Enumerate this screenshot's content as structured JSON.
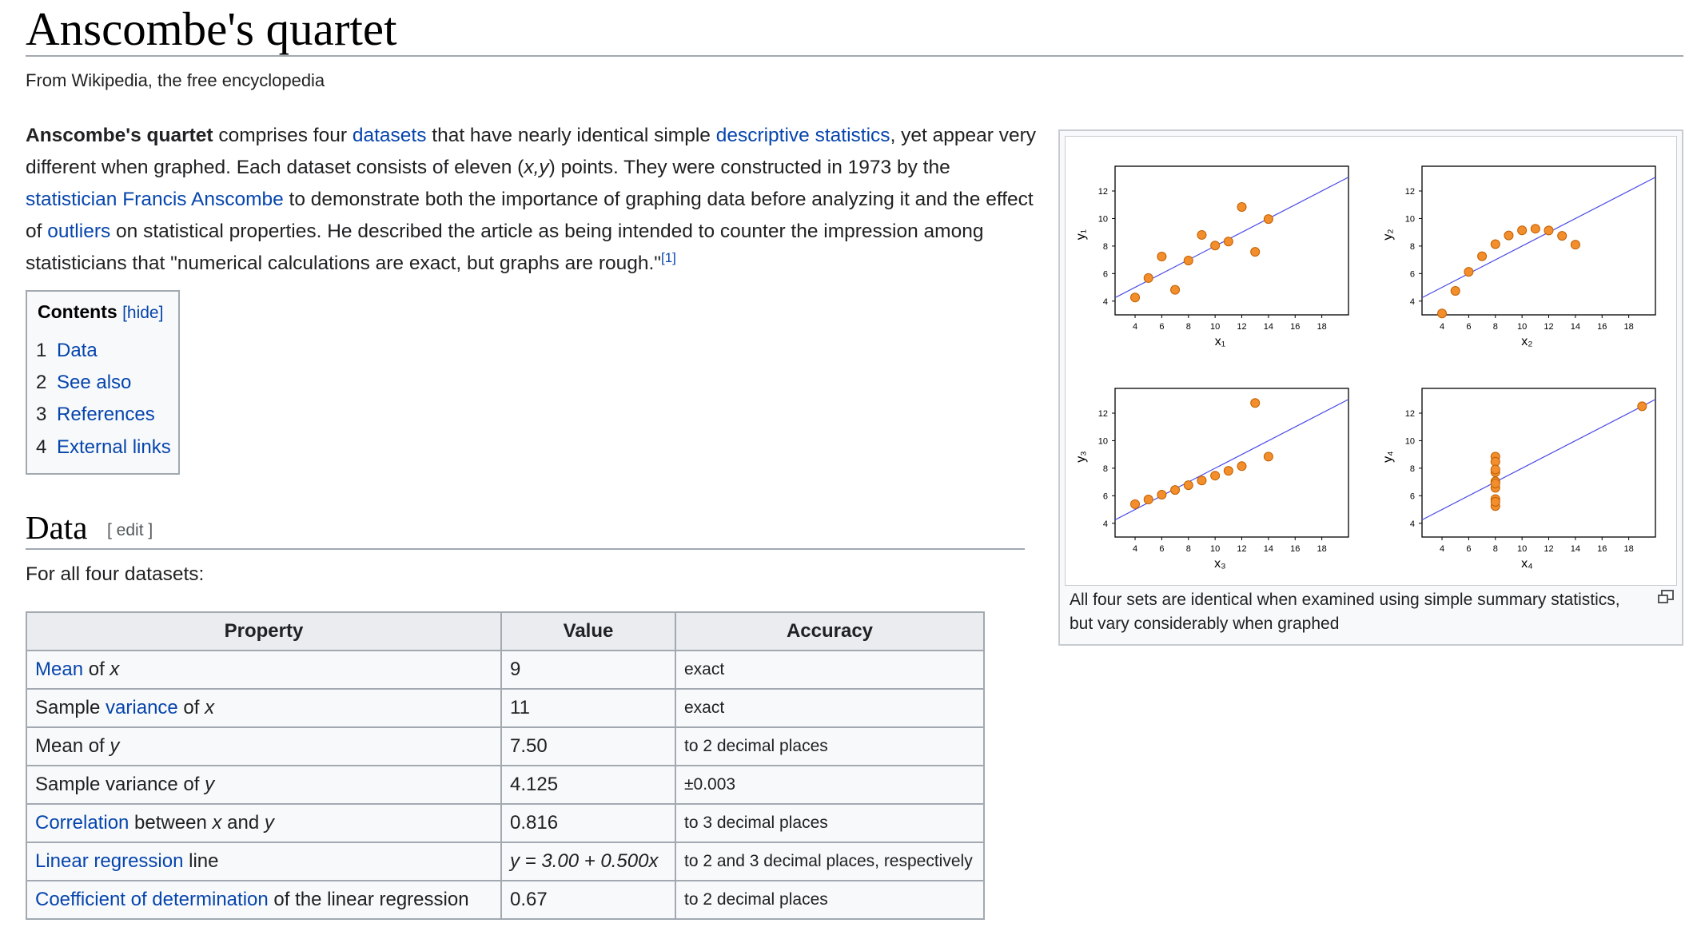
{
  "article": {
    "title": "Anscombe's quartet",
    "tagline": "From Wikipedia, the free encyclopedia"
  },
  "intro": {
    "bold_subject": "Anscombe's quartet",
    "t1": " comprises four ",
    "link_datasets": "datasets",
    "t2": " that have nearly identical simple ",
    "link_descriptive": "descriptive statistics",
    "t3": ", yet appear very different when graphed. Each dataset consists of eleven (",
    "xy": "x,y",
    "t4": ") points. They were constructed in 1973 by the ",
    "link_statistician": "statistician",
    "t5": " ",
    "link_anscombe": "Francis Anscombe",
    "t6": " to demonstrate both the importance of graphing data before analyzing it and the effect of ",
    "link_outliers": "outliers",
    "t7": " on statistical properties. He described the article as being intended to counter the impression among statisticians that \"numerical calculations are exact, but graphs are rough.\"",
    "ref": "[1]"
  },
  "toc": {
    "heading": "Contents",
    "toggle": "[hide]",
    "items": [
      {
        "num": "1",
        "label": "Data"
      },
      {
        "num": "2",
        "label": "See also"
      },
      {
        "num": "3",
        "label": "References"
      },
      {
        "num": "4",
        "label": "External links"
      }
    ]
  },
  "section": {
    "heading": "Data",
    "edit": "[ edit ]",
    "lead": "For all four datasets:"
  },
  "table": {
    "headers": [
      "Property",
      "Value",
      "Accuracy"
    ],
    "rows": [
      {
        "link": "Mean",
        "pre": "",
        "post": " of ",
        "var": "x",
        "value": "9",
        "accuracy": "exact"
      },
      {
        "link": "variance",
        "pre": "Sample ",
        "post": " of ",
        "var": "x",
        "value": "11",
        "accuracy": "exact"
      },
      {
        "link": "",
        "pre": "Mean of ",
        "post": "",
        "var": "y",
        "value": "7.50",
        "accuracy": "to 2 decimal places"
      },
      {
        "link": "",
        "pre": "Sample variance of ",
        "post": "",
        "var": "y",
        "value": "4.125",
        "accuracy": "±0.003"
      },
      {
        "link": "Correlation",
        "pre": "",
        "post": " between ",
        "var": "x",
        "post2": " and ",
        "var2": "y",
        "value": "0.816",
        "accuracy": "to 3 decimal places"
      },
      {
        "link": "Linear regression",
        "pre": "",
        "post": " line",
        "var": "",
        "value": "y = 3.00 + 0.500x",
        "accuracy": "to 2 and 3 decimal places, respectively"
      },
      {
        "link": "Coefficient of determination",
        "pre": "",
        "post": " of the linear regression",
        "var": "",
        "value": "0.67",
        "accuracy": "to 2 decimal places"
      }
    ]
  },
  "figure": {
    "caption": "All four sets are identical when examined using simple summary statistics, but vary considerably when graphed",
    "enlarge_icon": "enlarge-icon"
  },
  "chart_data": [
    {
      "type": "scatter",
      "title": "",
      "xlabel": "x1",
      "ylabel": "y1",
      "xlim": [
        2.5,
        20
      ],
      "ylim": [
        3,
        13.8
      ],
      "xticks": [
        4,
        6,
        8,
        10,
        12,
        14,
        16,
        18
      ],
      "yticks": [
        4,
        6,
        8,
        10,
        12
      ],
      "x": [
        10,
        8,
        13,
        9,
        11,
        14,
        6,
        4,
        12,
        7,
        5
      ],
      "y": [
        8.04,
        6.95,
        7.58,
        8.81,
        8.33,
        9.96,
        7.24,
        4.26,
        10.84,
        4.82,
        5.68
      ],
      "fit": {
        "intercept": 3.0,
        "slope": 0.5
      },
      "point_color": "#f28e2b",
      "line_color": "#4a4ae6"
    },
    {
      "type": "scatter",
      "title": "",
      "xlabel": "x2",
      "ylabel": "y2",
      "xlim": [
        2.5,
        20
      ],
      "ylim": [
        3,
        13.8
      ],
      "xticks": [
        4,
        6,
        8,
        10,
        12,
        14,
        16,
        18
      ],
      "yticks": [
        4,
        6,
        8,
        10,
        12
      ],
      "x": [
        10,
        8,
        13,
        9,
        11,
        14,
        6,
        4,
        12,
        7,
        5
      ],
      "y": [
        9.14,
        8.14,
        8.74,
        8.77,
        9.26,
        8.1,
        6.13,
        3.1,
        9.13,
        7.26,
        4.74
      ],
      "fit": {
        "intercept": 3.0,
        "slope": 0.5
      },
      "point_color": "#f28e2b",
      "line_color": "#4a4ae6"
    },
    {
      "type": "scatter",
      "title": "",
      "xlabel": "x3",
      "ylabel": "y3",
      "xlim": [
        2.5,
        20
      ],
      "ylim": [
        3,
        13.8
      ],
      "xticks": [
        4,
        6,
        8,
        10,
        12,
        14,
        16,
        18
      ],
      "yticks": [
        4,
        6,
        8,
        10,
        12
      ],
      "x": [
        10,
        8,
        13,
        9,
        11,
        14,
        6,
        4,
        12,
        7,
        5
      ],
      "y": [
        7.46,
        6.77,
        12.74,
        7.11,
        7.81,
        8.84,
        6.08,
        5.39,
        8.15,
        6.42,
        5.73
      ],
      "fit": {
        "intercept": 3.0,
        "slope": 0.5
      },
      "point_color": "#f28e2b",
      "line_color": "#4a4ae6"
    },
    {
      "type": "scatter",
      "title": "",
      "xlabel": "x4",
      "ylabel": "y4",
      "xlim": [
        2.5,
        20
      ],
      "ylim": [
        3,
        13.8
      ],
      "xticks": [
        4,
        6,
        8,
        10,
        12,
        14,
        16,
        18
      ],
      "yticks": [
        4,
        6,
        8,
        10,
        12
      ],
      "x": [
        8,
        8,
        8,
        8,
        8,
        8,
        8,
        19,
        8,
        8,
        8
      ],
      "y": [
        6.58,
        5.76,
        7.71,
        8.84,
        8.47,
        7.04,
        5.25,
        12.5,
        5.56,
        7.91,
        6.89
      ],
      "fit": {
        "intercept": 3.0,
        "slope": 0.5
      },
      "point_color": "#f28e2b",
      "line_color": "#4a4ae6"
    }
  ]
}
